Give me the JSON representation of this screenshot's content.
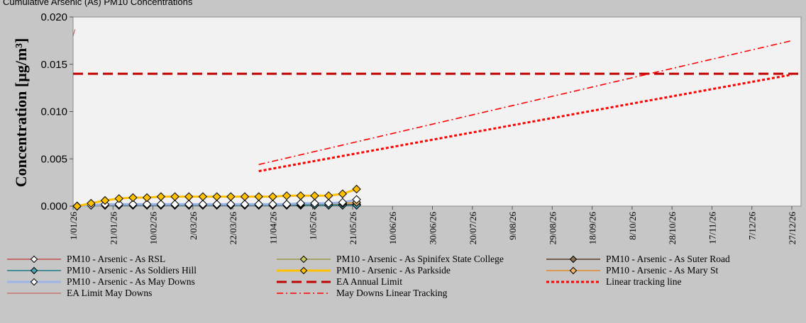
{
  "header_text": "Cumulative Arsenic (As) PM10 Concentrations",
  "chart_data": {
    "type": "line",
    "title": "",
    "xlabel": "",
    "ylabel": "Concentration [µg/m³]",
    "ylim": [
      0,
      0.02
    ],
    "yticks": [
      "0.000",
      "0.005",
      "0.010",
      "0.015",
      "0.020"
    ],
    "xlim": [
      "2026-01-01",
      "2026-12-27"
    ],
    "xticks": [
      "1/01/26",
      "21/01/26",
      "10/02/26",
      "2/03/26",
      "22/03/26",
      "11/04/26",
      "1/05/26",
      "21/05/26",
      "10/06/26",
      "30/06/26",
      "20/07/26",
      "9/08/26",
      "29/08/26",
      "18/09/26",
      "8/10/26",
      "28/10/26",
      "17/11/26",
      "7/12/26",
      "27/12/26"
    ],
    "grid": false,
    "legend_position": "bottom",
    "series": [
      {
        "name": "PM10 - Arsenic - As RSL",
        "color": "#c0504d",
        "marker": "diamond",
        "marker_fill": "#ffffff",
        "style": "solid",
        "x": [
          "2026-01-03",
          "2026-01-10",
          "2026-01-17",
          "2026-01-24",
          "2026-01-31",
          "2026-02-07",
          "2026-02-14",
          "2026-02-21",
          "2026-02-28",
          "2026-03-07",
          "2026-03-14",
          "2026-03-21",
          "2026-03-28",
          "2026-04-04",
          "2026-04-11",
          "2026-04-18",
          "2026-04-25",
          "2026-05-02",
          "2026-05-09",
          "2026-05-16",
          "2026-05-23"
        ],
        "y": [
          0.0,
          0.0001,
          0.0001,
          0.0001,
          0.0001,
          0.0001,
          0.0001,
          0.0001,
          0.0001,
          0.0001,
          0.0001,
          0.0001,
          0.0001,
          0.0001,
          0.0001,
          0.0001,
          0.0001,
          0.0001,
          0.0001,
          0.0001,
          0.0001
        ]
      },
      {
        "name": "PM10 - Arsenic - As Spinifex State College",
        "color": "#9b9b4e",
        "marker": "diamond",
        "marker_fill": "#c8c864",
        "style": "solid",
        "x": [
          "2026-01-03",
          "2026-01-10",
          "2026-01-17",
          "2026-01-24",
          "2026-01-31",
          "2026-02-07",
          "2026-02-14",
          "2026-02-21",
          "2026-02-28",
          "2026-03-07",
          "2026-03-14",
          "2026-03-21",
          "2026-03-28",
          "2026-04-04",
          "2026-04-11",
          "2026-04-18",
          "2026-04-25",
          "2026-05-02",
          "2026-05-09",
          "2026-05-16",
          "2026-05-23"
        ],
        "y": [
          0.0,
          0.0001,
          0.0001,
          0.0002,
          0.0002,
          0.0002,
          0.0002,
          0.0002,
          0.0002,
          0.0002,
          0.0002,
          0.0002,
          0.0002,
          0.0002,
          0.0002,
          0.0002,
          0.0002,
          0.0002,
          0.0002,
          0.0002,
          0.0002
        ]
      },
      {
        "name": "PM10 - Arsenic - As Suter Road",
        "color": "#5a3c28",
        "marker": "diamond",
        "marker_fill": "#8b6e50",
        "style": "solid",
        "x": [
          "2026-01-03",
          "2026-01-10",
          "2026-01-17",
          "2026-01-24",
          "2026-01-31",
          "2026-02-07",
          "2026-02-14",
          "2026-02-21",
          "2026-02-28",
          "2026-03-07",
          "2026-03-14",
          "2026-03-21",
          "2026-03-28",
          "2026-04-04",
          "2026-04-11",
          "2026-04-18",
          "2026-04-25",
          "2026-05-02",
          "2026-05-09",
          "2026-05-16",
          "2026-05-23"
        ],
        "y": [
          0.0,
          0.0001,
          0.0001,
          0.0001,
          0.0001,
          0.0001,
          0.0001,
          0.0001,
          0.0001,
          0.0001,
          0.0001,
          0.0001,
          0.0001,
          0.0001,
          0.0001,
          0.0001,
          0.0001,
          0.0001,
          0.0001,
          0.0001,
          0.0002
        ]
      },
      {
        "name": "PM10 - Arsenic - As Soldiers Hill",
        "color": "#1f7a8c",
        "marker": "diamond",
        "marker_fill": "#4aa3b5",
        "style": "solid",
        "x": [
          "2026-01-03",
          "2026-01-10",
          "2026-01-17",
          "2026-01-24",
          "2026-01-31",
          "2026-02-07",
          "2026-02-14",
          "2026-02-21",
          "2026-02-28",
          "2026-03-07",
          "2026-03-14",
          "2026-03-21",
          "2026-03-28",
          "2026-04-04",
          "2026-04-11",
          "2026-04-18",
          "2026-04-25",
          "2026-05-02",
          "2026-05-09",
          "2026-05-16",
          "2026-05-23"
        ],
        "y": [
          0.0,
          0.0001,
          0.0001,
          0.0001,
          0.0001,
          0.0001,
          0.0001,
          0.0001,
          0.0001,
          0.0001,
          0.0001,
          0.0001,
          0.0001,
          0.0001,
          0.0001,
          0.0001,
          0.0001,
          0.0001,
          0.0001,
          0.0001,
          0.0001
        ]
      },
      {
        "name": "PM10 - Arsenic - As Parkside",
        "color": "#ffc000",
        "marker": "diamond",
        "marker_fill": "#ffc000",
        "style": "thick",
        "x": [
          "2026-01-03",
          "2026-01-10",
          "2026-01-17",
          "2026-01-24",
          "2026-01-31",
          "2026-02-07",
          "2026-02-14",
          "2026-02-21",
          "2026-02-28",
          "2026-03-07",
          "2026-03-14",
          "2026-03-21",
          "2026-03-28",
          "2026-04-04",
          "2026-04-11",
          "2026-04-18",
          "2026-04-25",
          "2026-05-02",
          "2026-05-09",
          "2026-05-16",
          "2026-05-23"
        ],
        "y": [
          0.0,
          0.0003,
          0.0006,
          0.0008,
          0.0009,
          0.0009,
          0.001,
          0.001,
          0.001,
          0.001,
          0.001,
          0.001,
          0.001,
          0.001,
          0.001,
          0.0011,
          0.0011,
          0.0011,
          0.0011,
          0.0013,
          0.0018
        ]
      },
      {
        "name": "PM10 - Arsenic - As Mary St",
        "color": "#e0892a",
        "marker": "diamond",
        "marker_fill": "#f2b66b",
        "style": "solid",
        "x": [
          "2026-01-03",
          "2026-01-10",
          "2026-01-17",
          "2026-01-24",
          "2026-01-31",
          "2026-02-07",
          "2026-02-14",
          "2026-02-21",
          "2026-02-28",
          "2026-03-07",
          "2026-03-14",
          "2026-03-21",
          "2026-03-28",
          "2026-04-04",
          "2026-04-11",
          "2026-04-18",
          "2026-04-25",
          "2026-05-02",
          "2026-05-09",
          "2026-05-16",
          "2026-05-23"
        ],
        "y": [
          0.0,
          0.0001,
          0.0001,
          0.0002,
          0.0002,
          0.0002,
          0.0002,
          0.0002,
          0.0002,
          0.0002,
          0.0002,
          0.0002,
          0.0002,
          0.0002,
          0.0002,
          0.0002,
          0.0002,
          0.0003,
          0.0003,
          0.0003,
          0.0004
        ]
      },
      {
        "name": "PM10 - Arsenic - As May Downs",
        "color": "#9fb4e6",
        "marker": "diamond",
        "marker_fill": "#ffffff",
        "style": "thick",
        "x": [
          "2026-01-03",
          "2026-01-10",
          "2026-01-17",
          "2026-01-24",
          "2026-01-31",
          "2026-02-07",
          "2026-02-14",
          "2026-02-21",
          "2026-02-28",
          "2026-03-07",
          "2026-03-14",
          "2026-03-21",
          "2026-03-28",
          "2026-04-04",
          "2026-04-11",
          "2026-04-18",
          "2026-04-25",
          "2026-05-02",
          "2026-05-09",
          "2026-05-16",
          "2026-05-23"
        ],
        "y": [
          0.0,
          0.0001,
          0.0002,
          0.0002,
          0.0002,
          0.0002,
          0.0002,
          0.0002,
          0.0002,
          0.0002,
          0.0002,
          0.0002,
          0.0002,
          0.0002,
          0.0002,
          0.0002,
          0.0003,
          0.0003,
          0.0003,
          0.0004,
          0.0007
        ]
      },
      {
        "name": "EA Annual Limit",
        "color": "#c00000",
        "style": "dash",
        "x": [
          "2026-01-01",
          "2026-12-31"
        ],
        "y": [
          0.014,
          0.014
        ]
      },
      {
        "name": "Linear tracking line",
        "color": "#ff0000",
        "style": "dot",
        "x": [
          "2026-04-04",
          "2026-12-27"
        ],
        "y": [
          0.0037,
          0.0139
        ]
      },
      {
        "name": "EA Limit May Downs",
        "color": "#c0504d",
        "style": "solid-thin",
        "x": [
          "2026-01-01",
          "2026-01-02"
        ],
        "y": [
          0.018,
          0.0187
        ]
      },
      {
        "name": "May Downs Linear Tracking",
        "color": "#ff0000",
        "style": "dashdot",
        "x": [
          "2026-04-04",
          "2026-12-27"
        ],
        "y": [
          0.0044,
          0.0175
        ]
      }
    ]
  }
}
